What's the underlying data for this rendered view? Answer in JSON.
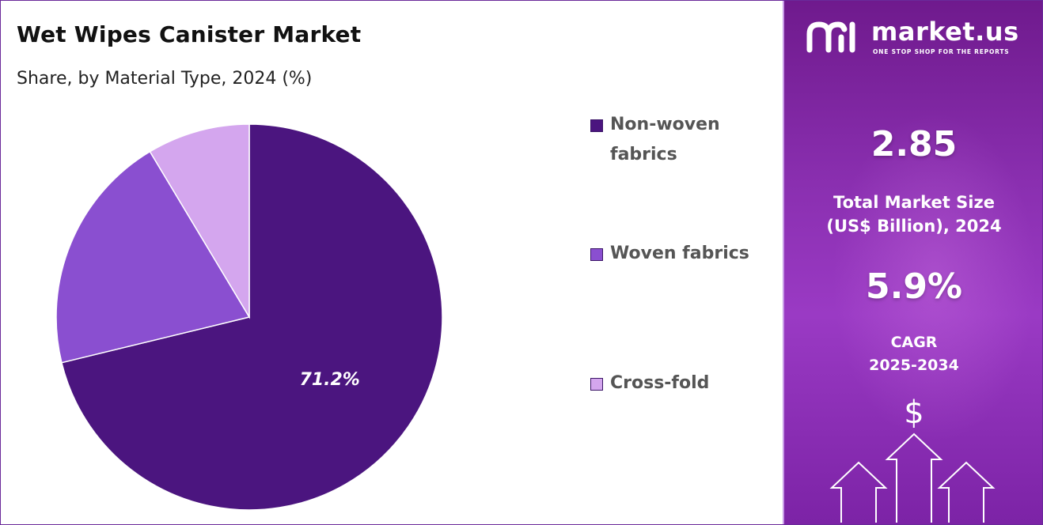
{
  "chart_data": {
    "type": "pie",
    "title": "Wet Wipes Canister Market",
    "subtitle": "Share, by Material Type, 2024 (%)",
    "categories": [
      "Non-woven fabrics",
      "Woven fabrics",
      "Cross-fold"
    ],
    "values": [
      71.2,
      20.2,
      8.6
    ],
    "colors": [
      "#4b157f",
      "#8a4fd0",
      "#d4a6ee"
    ],
    "data_labels": [
      "71.2%",
      "",
      ""
    ],
    "legend_position": "right"
  },
  "legend": {
    "items": [
      {
        "label": "Non-woven fabrics",
        "color": "#4b157f"
      },
      {
        "label": "Woven fabrics",
        "color": "#8a4fd0"
      },
      {
        "label": "Cross-fold",
        "color": "#d4a6ee"
      }
    ]
  },
  "sidebar": {
    "brand_name": "market.us",
    "brand_tagline": "ONE STOP SHOP FOR THE REPORTS",
    "market_size_value": "2.85",
    "market_size_label_line1": "Total Market Size",
    "market_size_label_line2": "(US$ Billion), 2024",
    "cagr_value": "5.9%",
    "cagr_label_line1": "CAGR",
    "cagr_label_line2": "2025-2034",
    "dollar_symbol": "$",
    "icons": [
      "logo-icon",
      "dollar-icon",
      "up-arrow-icon"
    ]
  }
}
